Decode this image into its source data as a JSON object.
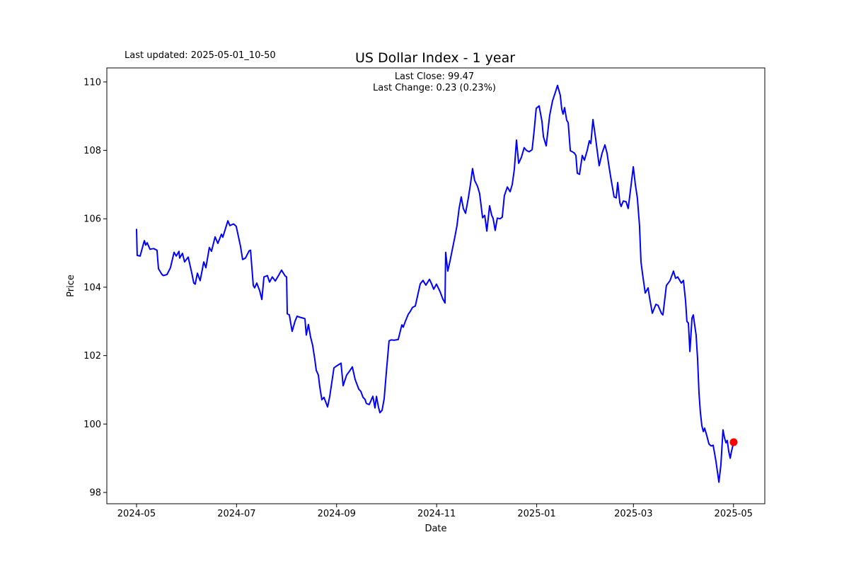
{
  "header": {
    "last_updated_label": "Last updated: 2025-05-01_10-50",
    "title": "US Dollar Index - 1 year",
    "annotation_line1": "Last Close: 99.47",
    "annotation_line2": "Last Change: 0.23 (0.23%)"
  },
  "chart_data": {
    "type": "line",
    "title": "US Dollar Index - 1 year",
    "xlabel": "Date",
    "ylabel": "Price",
    "grid": false,
    "legend": "none",
    "line_color": "#0000ff",
    "marker_color": "#ff0000",
    "x_unit": "days since 2024-05-01",
    "x_axis_domain": [
      -18.1,
      383.1
    ],
    "y_axis_domain": [
      97.67,
      110.41
    ],
    "x_ticks": [
      {
        "t": 0,
        "label": "2024-05"
      },
      {
        "t": 61,
        "label": "2024-07"
      },
      {
        "t": 122,
        "label": "2024-09"
      },
      {
        "t": 183,
        "label": "2024-11"
      },
      {
        "t": 244,
        "label": "2025-01"
      },
      {
        "t": 303,
        "label": "2025-03"
      },
      {
        "t": 364,
        "label": "2025-05"
      }
    ],
    "y_ticks": [
      98,
      100,
      102,
      104,
      106,
      108,
      110
    ],
    "last_close": 99.47,
    "last_change": "0.23 (0.23%)",
    "end_marker": {
      "t": 364.1,
      "price": 99.47
    },
    "series": [
      {
        "name": "US Dollar Index",
        "color": "#0000ff",
        "points": [
          [
            0,
            105.69
          ],
          [
            0.4,
            104.93
          ],
          [
            2.2,
            104.91
          ],
          [
            4.3,
            105.28
          ],
          [
            4.8,
            105.36
          ],
          [
            5.6,
            105.23
          ],
          [
            6.5,
            105.3
          ],
          [
            8.2,
            105.11
          ],
          [
            10.4,
            105.13
          ],
          [
            12.5,
            105.08
          ],
          [
            13.4,
            104.54
          ],
          [
            15.5,
            104.37
          ],
          [
            16.4,
            104.34
          ],
          [
            18.6,
            104.37
          ],
          [
            20.7,
            104.57
          ],
          [
            22.9,
            105.02
          ],
          [
            24.2,
            104.91
          ],
          [
            25.9,
            105.05
          ],
          [
            26.3,
            104.85
          ],
          [
            28.0,
            104.99
          ],
          [
            29.3,
            104.74
          ],
          [
            31.5,
            104.88
          ],
          [
            33.7,
            104.41
          ],
          [
            34.9,
            104.12
          ],
          [
            35.8,
            104.09
          ],
          [
            37.1,
            104.41
          ],
          [
            38.8,
            104.19
          ],
          [
            41.0,
            104.74
          ],
          [
            42.3,
            104.57
          ],
          [
            44.4,
            105.16
          ],
          [
            45.7,
            105.05
          ],
          [
            47.9,
            105.47
          ],
          [
            49.6,
            105.28
          ],
          [
            51.8,
            105.55
          ],
          [
            52.6,
            105.46
          ],
          [
            55.7,
            105.94
          ],
          [
            56.9,
            105.8
          ],
          [
            59.1,
            105.85
          ],
          [
            60.8,
            105.78
          ],
          [
            63.4,
            105.2
          ],
          [
            64.7,
            104.81
          ],
          [
            66.4,
            104.85
          ],
          [
            68.6,
            105.06
          ],
          [
            69.5,
            105.08
          ],
          [
            71.2,
            104.05
          ],
          [
            72.0,
            103.98
          ],
          [
            73.3,
            104.12
          ],
          [
            75.1,
            103.9
          ],
          [
            76.4,
            103.64
          ],
          [
            77.7,
            104.3
          ],
          [
            79.8,
            104.34
          ],
          [
            81.1,
            104.15
          ],
          [
            82.8,
            104.3
          ],
          [
            84.6,
            104.18
          ],
          [
            86.7,
            104.35
          ],
          [
            88.4,
            104.5
          ],
          [
            90.6,
            104.33
          ],
          [
            91.5,
            104.3
          ],
          [
            91.9,
            103.22
          ],
          [
            93.2,
            103.19
          ],
          [
            94.0,
            102.95
          ],
          [
            94.9,
            102.71
          ],
          [
            96.6,
            103.0
          ],
          [
            97.9,
            103.15
          ],
          [
            99.7,
            103.12
          ],
          [
            101.4,
            103.1
          ],
          [
            102.7,
            103.08
          ],
          [
            103.5,
            102.6
          ],
          [
            104.8,
            102.91
          ],
          [
            106.1,
            102.55
          ],
          [
            107.4,
            102.3
          ],
          [
            108.7,
            101.9
          ],
          [
            109.6,
            101.57
          ],
          [
            110.9,
            101.43
          ],
          [
            111.7,
            101.1
          ],
          [
            113.0,
            100.71
          ],
          [
            114.3,
            100.78
          ],
          [
            116.5,
            100.5
          ],
          [
            117.8,
            100.8
          ],
          [
            120.4,
            101.64
          ],
          [
            122.1,
            101.7
          ],
          [
            124.7,
            101.78
          ],
          [
            126.0,
            101.12
          ],
          [
            128.1,
            101.43
          ],
          [
            129.9,
            101.55
          ],
          [
            131.6,
            101.67
          ],
          [
            133.3,
            101.3
          ],
          [
            135.5,
            101.02
          ],
          [
            136.8,
            100.95
          ],
          [
            138.1,
            100.78
          ],
          [
            139.3,
            100.72
          ],
          [
            140.2,
            100.6
          ],
          [
            141.9,
            100.57
          ],
          [
            144.1,
            100.81
          ],
          [
            145.4,
            100.47
          ],
          [
            146.3,
            100.81
          ],
          [
            147.5,
            100.5
          ],
          [
            148.4,
            100.33
          ],
          [
            149.7,
            100.4
          ],
          [
            151.0,
            100.74
          ],
          [
            152.3,
            101.5
          ],
          [
            153.2,
            102.0
          ],
          [
            154.0,
            102.43
          ],
          [
            155.3,
            102.46
          ],
          [
            157.0,
            102.45
          ],
          [
            159.6,
            102.47
          ],
          [
            160.5,
            102.65
          ],
          [
            161.8,
            102.9
          ],
          [
            162.6,
            102.83
          ],
          [
            163.9,
            103.0
          ],
          [
            165.7,
            103.21
          ],
          [
            167.0,
            103.3
          ],
          [
            168.3,
            103.41
          ],
          [
            170.0,
            103.45
          ],
          [
            171.3,
            103.73
          ],
          [
            173.0,
            104.1
          ],
          [
            174.7,
            104.2
          ],
          [
            176.4,
            104.06
          ],
          [
            178.6,
            104.23
          ],
          [
            179.9,
            104.1
          ],
          [
            181.2,
            103.94
          ],
          [
            182.9,
            104.09
          ],
          [
            185.1,
            103.87
          ],
          [
            186.8,
            103.65
          ],
          [
            188.1,
            103.54
          ],
          [
            188.5,
            105.02
          ],
          [
            189.8,
            104.47
          ],
          [
            191.1,
            104.75
          ],
          [
            192.8,
            105.16
          ],
          [
            194.1,
            105.47
          ],
          [
            195.4,
            105.8
          ],
          [
            196.7,
            106.3
          ],
          [
            198.0,
            106.64
          ],
          [
            199.3,
            106.3
          ],
          [
            200.6,
            106.16
          ],
          [
            202.3,
            106.6
          ],
          [
            203.6,
            107.0
          ],
          [
            204.9,
            107.47
          ],
          [
            206.2,
            107.12
          ],
          [
            207.9,
            106.95
          ],
          [
            209.2,
            106.74
          ],
          [
            211.0,
            106.03
          ],
          [
            212.3,
            106.1
          ],
          [
            213.6,
            105.64
          ],
          [
            215.3,
            106.38
          ],
          [
            216.6,
            106.1
          ],
          [
            217.4,
            106.02
          ],
          [
            218.7,
            105.66
          ],
          [
            220.0,
            106.02
          ],
          [
            221.7,
            106.0
          ],
          [
            223.0,
            106.05
          ],
          [
            224.3,
            106.68
          ],
          [
            226.1,
            106.93
          ],
          [
            227.8,
            106.79
          ],
          [
            229.1,
            107.0
          ],
          [
            230.4,
            107.45
          ],
          [
            231.7,
            108.3
          ],
          [
            233.0,
            107.62
          ],
          [
            234.7,
            107.8
          ],
          [
            236.4,
            108.08
          ],
          [
            237.7,
            108.0
          ],
          [
            239.4,
            107.96
          ],
          [
            241.2,
            108.02
          ],
          [
            242.5,
            108.6
          ],
          [
            243.7,
            109.23
          ],
          [
            245.5,
            109.3
          ],
          [
            247.2,
            108.85
          ],
          [
            248.1,
            108.4
          ],
          [
            249.8,
            108.13
          ],
          [
            251.9,
            109.02
          ],
          [
            253.7,
            109.45
          ],
          [
            255.4,
            109.7
          ],
          [
            256.7,
            109.9
          ],
          [
            258.4,
            109.61
          ],
          [
            259.3,
            109.2
          ],
          [
            260.1,
            109.06
          ],
          [
            261.0,
            109.25
          ],
          [
            262.3,
            108.88
          ],
          [
            263.2,
            108.81
          ],
          [
            264.5,
            107.99
          ],
          [
            265.7,
            107.96
          ],
          [
            267.0,
            107.92
          ],
          [
            267.9,
            107.85
          ],
          [
            268.8,
            107.33
          ],
          [
            270.1,
            107.3
          ],
          [
            271.8,
            107.85
          ],
          [
            273.1,
            107.71
          ],
          [
            274.8,
            108.0
          ],
          [
            276.1,
            108.28
          ],
          [
            277.0,
            108.2
          ],
          [
            278.3,
            108.9
          ],
          [
            280.0,
            108.33
          ],
          [
            280.9,
            107.99
          ],
          [
            282.1,
            107.55
          ],
          [
            283.9,
            107.92
          ],
          [
            285.6,
            108.16
          ],
          [
            286.9,
            107.92
          ],
          [
            288.2,
            107.5
          ],
          [
            289.5,
            107.12
          ],
          [
            291.2,
            106.64
          ],
          [
            292.5,
            106.61
          ],
          [
            293.4,
            107.06
          ],
          [
            294.7,
            106.47
          ],
          [
            295.5,
            106.36
          ],
          [
            296.8,
            106.52
          ],
          [
            298.5,
            106.5
          ],
          [
            299.8,
            106.3
          ],
          [
            301.1,
            106.8
          ],
          [
            302.9,
            107.52
          ],
          [
            304.1,
            107.02
          ],
          [
            305.4,
            106.6
          ],
          [
            306.7,
            105.8
          ],
          [
            307.6,
            104.74
          ],
          [
            308.5,
            104.4
          ],
          [
            310.2,
            103.83
          ],
          [
            311.9,
            103.98
          ],
          [
            312.8,
            103.71
          ],
          [
            314.5,
            103.24
          ],
          [
            316.7,
            103.5
          ],
          [
            318.0,
            103.47
          ],
          [
            320.1,
            103.23
          ],
          [
            321.0,
            103.19
          ],
          [
            323.1,
            104.05
          ],
          [
            325.3,
            104.19
          ],
          [
            327.4,
            104.47
          ],
          [
            328.7,
            104.26
          ],
          [
            330.0,
            104.3
          ],
          [
            332.2,
            104.12
          ],
          [
            333.5,
            104.2
          ],
          [
            334.8,
            103.6
          ],
          [
            335.6,
            103.0
          ],
          [
            336.5,
            102.95
          ],
          [
            337.4,
            102.12
          ],
          [
            338.7,
            103.1
          ],
          [
            339.5,
            103.19
          ],
          [
            340.4,
            102.88
          ],
          [
            341.2,
            102.6
          ],
          [
            342.1,
            101.9
          ],
          [
            343.0,
            100.9
          ],
          [
            343.8,
            100.35
          ],
          [
            344.7,
            99.95
          ],
          [
            345.6,
            99.78
          ],
          [
            346.4,
            99.88
          ],
          [
            347.7,
            99.67
          ],
          [
            349.0,
            99.42
          ],
          [
            350.3,
            99.36
          ],
          [
            351.6,
            99.38
          ],
          [
            353.3,
            98.92
          ],
          [
            355.1,
            98.3
          ],
          [
            356.3,
            98.8
          ],
          [
            357.6,
            99.83
          ],
          [
            358.5,
            99.6
          ],
          [
            359.4,
            99.45
          ],
          [
            360.2,
            99.52
          ],
          [
            361.1,
            99.2
          ],
          [
            362.0,
            99.0
          ],
          [
            362.8,
            99.2
          ],
          [
            364.1,
            99.47
          ]
        ]
      }
    ]
  }
}
